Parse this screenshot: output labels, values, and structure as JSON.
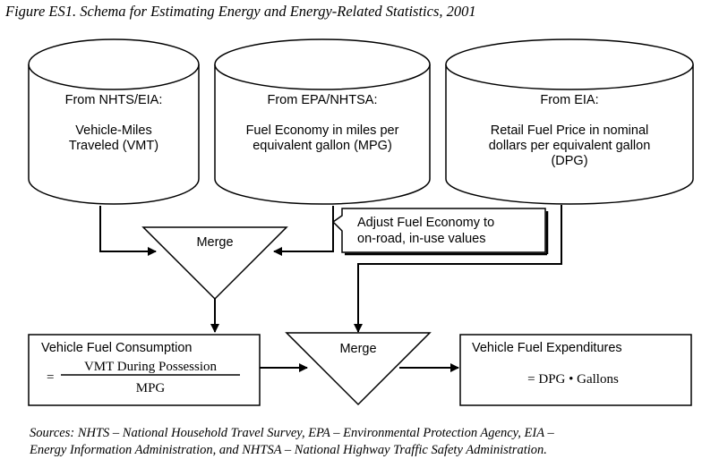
{
  "title": "Figure ES1. Schema for Estimating Energy and Energy-Related Statistics, 2001",
  "sources": [
    {
      "source": "From NHTS/EIA:",
      "lines": [
        "Vehicle-Miles",
        "Traveled (VMT)"
      ]
    },
    {
      "source": "From EPA/NHTSA:",
      "lines": [
        "Fuel Economy in miles per",
        "equivalent gallon (MPG)"
      ]
    },
    {
      "source": "From EIA:",
      "lines": [
        "Retail Fuel Price in nominal",
        "dollars per equivalent gallon",
        "(DPG)"
      ]
    }
  ],
  "callout": {
    "lines": [
      "Adjust Fuel Economy to",
      "on-road, in-use values"
    ]
  },
  "merges": [
    {
      "label": "Merge"
    },
    {
      "label": "Merge"
    }
  ],
  "consumption": {
    "title": "Vehicle Fuel Consumption",
    "eq_sign": "=",
    "numerator": "VMT During Possession",
    "denominator": "MPG"
  },
  "expenditures": {
    "title": "Vehicle Fuel Expenditures",
    "formula": "= DPG • Gallons"
  },
  "footer": {
    "lines": [
      "Sources: NHTS – National Household Travel Survey, EPA – Environmental Protection Agency, EIA –",
      "Energy Information Administration, and NHTSA – National Highway Traffic Safety Administration."
    ]
  }
}
